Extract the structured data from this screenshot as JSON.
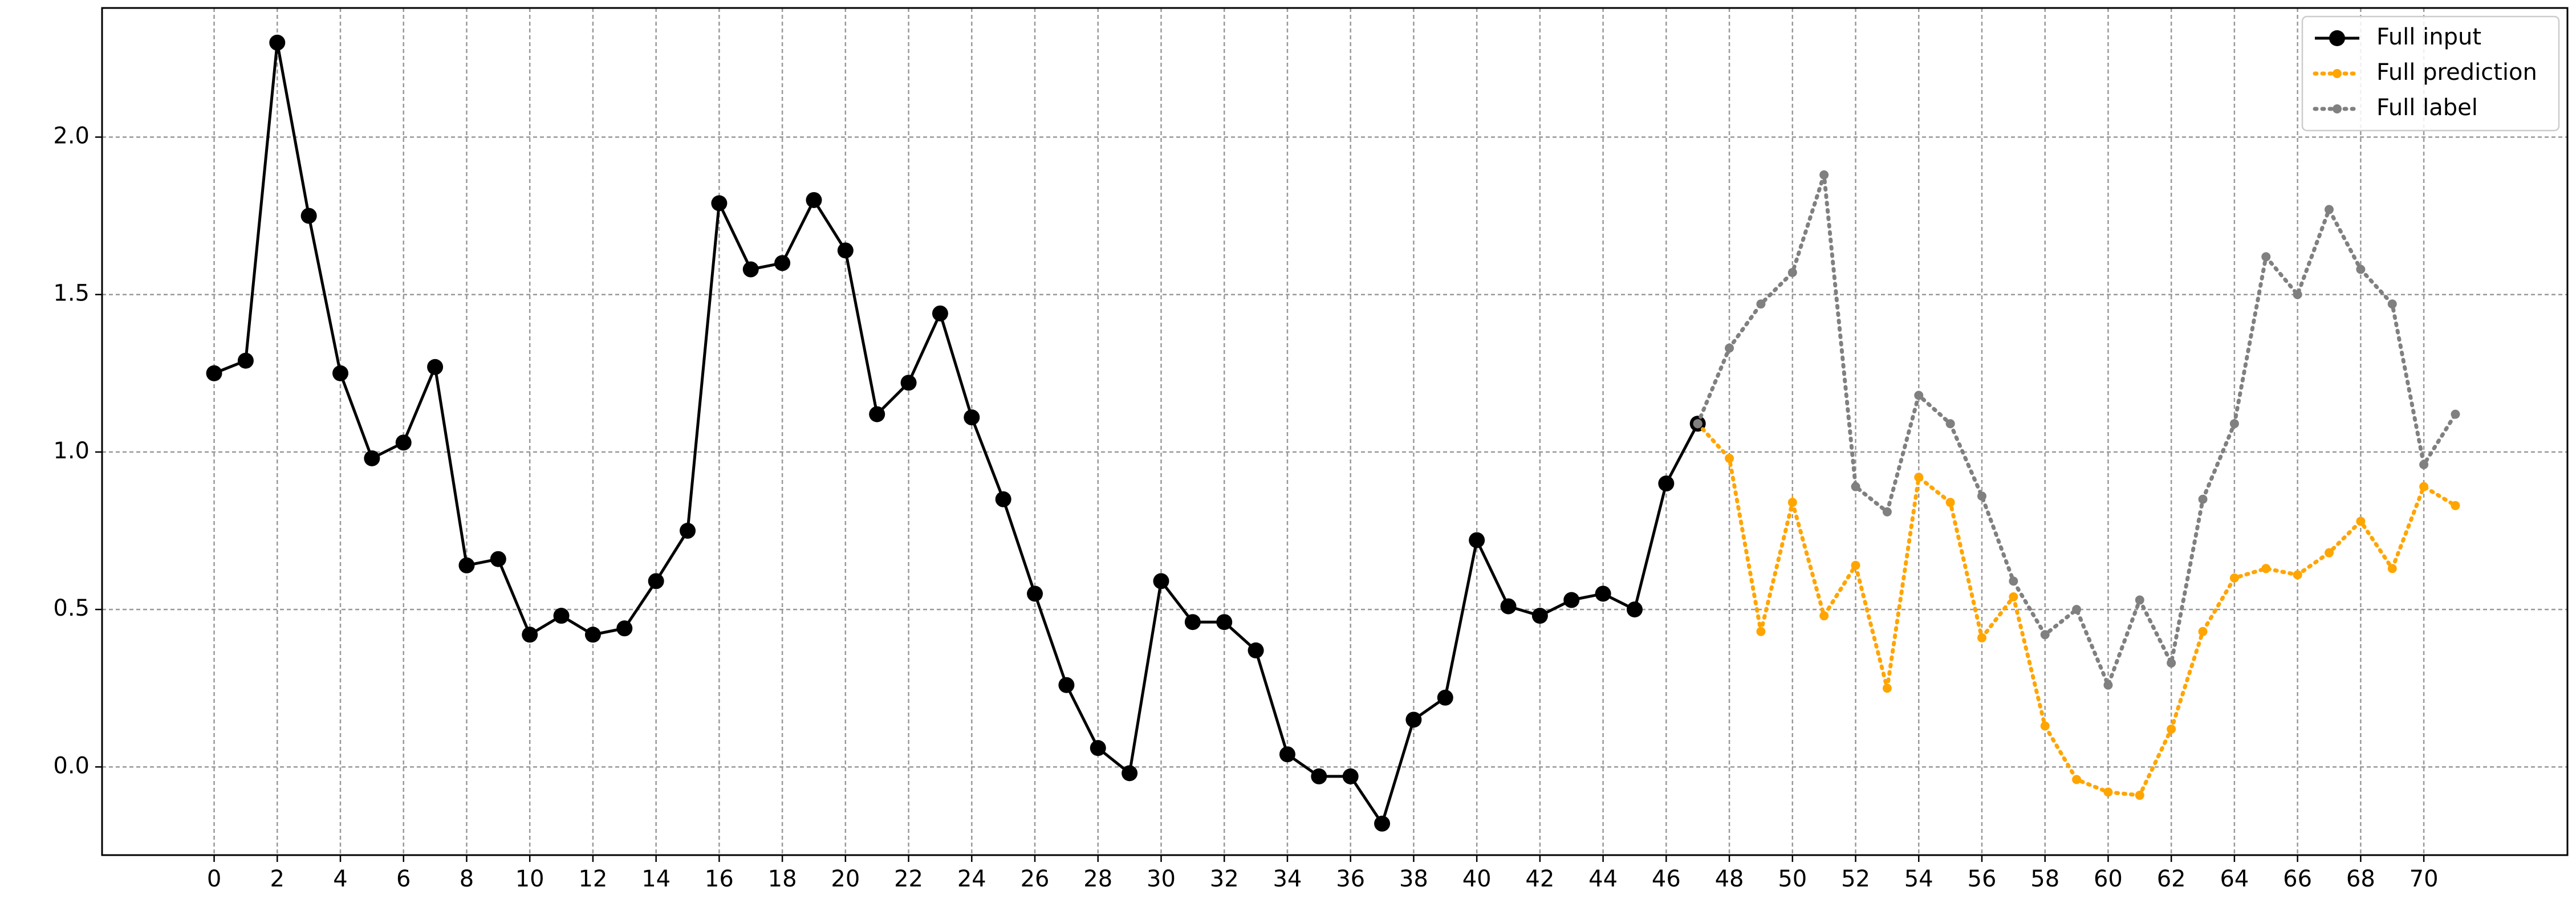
{
  "chart_data": {
    "type": "line",
    "xlim": [
      -3.55,
      74.55
    ],
    "ylim": [
      -0.28,
      2.41
    ],
    "xticks": [
      0,
      2,
      4,
      6,
      8,
      10,
      12,
      14,
      16,
      18,
      20,
      22,
      24,
      26,
      28,
      30,
      32,
      34,
      36,
      38,
      40,
      42,
      44,
      46,
      48,
      50,
      52,
      54,
      56,
      58,
      60,
      62,
      64,
      66,
      68,
      70
    ],
    "yticks": [
      {
        "value": 0,
        "label": "0.0"
      },
      0.5,
      {
        "value": 1,
        "label": "1.0"
      },
      1.5,
      {
        "value": 2,
        "label": "2.0"
      }
    ],
    "grid": true,
    "legend": "upper right",
    "series": [
      {
        "name": "Full input",
        "color": "#000000",
        "style": "solid",
        "x": [
          0,
          1,
          2,
          3,
          4,
          5,
          6,
          7,
          8,
          9,
          10,
          11,
          12,
          13,
          14,
          15,
          16,
          17,
          18,
          19,
          20,
          21,
          22,
          23,
          24,
          25,
          26,
          27,
          28,
          29,
          30,
          31,
          32,
          33,
          34,
          35,
          36,
          37,
          38,
          39,
          40,
          41,
          42,
          43,
          44,
          45,
          46,
          47
        ],
        "values": [
          1.25,
          1.29,
          2.3,
          1.75,
          1.25,
          0.98,
          1.03,
          1.27,
          0.64,
          0.66,
          0.42,
          0.48,
          0.42,
          0.44,
          0.59,
          0.75,
          1.79,
          1.58,
          1.6,
          1.8,
          1.64,
          1.12,
          1.22,
          1.44,
          1.11,
          0.85,
          0.55,
          0.26,
          0.06,
          -0.02,
          0.59,
          0.46,
          0.46,
          0.37,
          0.04,
          -0.03,
          -0.03,
          -0.18,
          0.15,
          0.22,
          0.72,
          0.51,
          0.48,
          0.53,
          0.55,
          0.5,
          0.9,
          1.09
        ]
      },
      {
        "name": "Full prediction",
        "color": "#ffa500",
        "style": "dotted",
        "x": [
          47,
          48,
          49,
          50,
          51,
          52,
          53,
          54,
          55,
          56,
          57,
          58,
          59,
          60,
          61,
          62,
          63,
          64,
          65,
          66,
          67,
          68,
          69,
          70,
          71
        ],
        "values": [
          1.09,
          0.98,
          0.43,
          0.84,
          0.48,
          0.64,
          0.25,
          0.92,
          0.84,
          0.41,
          0.54,
          0.13,
          -0.04,
          -0.08,
          -0.09,
          0.12,
          0.43,
          0.6,
          0.63,
          0.61,
          0.68,
          0.78,
          0.63,
          0.89,
          0.83
        ]
      },
      {
        "name": "Full label",
        "color": "#808080",
        "style": "dotted",
        "x": [
          47,
          48,
          49,
          50,
          51,
          52,
          53,
          54,
          55,
          56,
          57,
          58,
          59,
          60,
          61,
          62,
          63,
          64,
          65,
          66,
          67,
          68,
          69,
          70,
          71
        ],
        "values": [
          1.09,
          1.33,
          1.47,
          1.57,
          1.88,
          0.89,
          0.81,
          1.18,
          1.09,
          0.86,
          0.59,
          0.42,
          0.5,
          0.26,
          0.53,
          0.33,
          0.85,
          1.09,
          1.62,
          1.5,
          1.77,
          1.58,
          1.47,
          0.96,
          1.12
        ]
      }
    ]
  }
}
